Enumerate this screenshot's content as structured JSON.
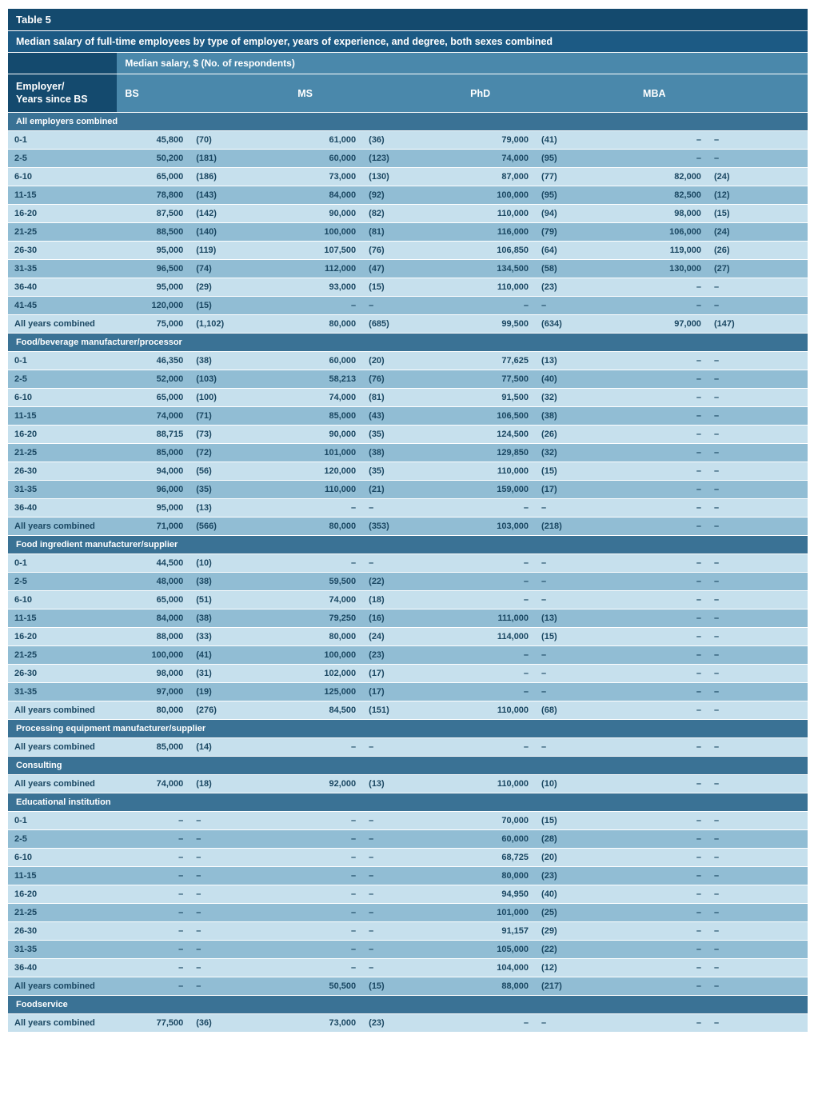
{
  "title": "Table 5",
  "subtitle": "Median salary of full-time employees by type of employer, years of experience, and degree, both sexes combined",
  "col_header_label": "Median salary, $ (No. of respondents)",
  "row_header_label": "Employer/\nYears since BS",
  "degrees": [
    "BS",
    "MS",
    "PhD",
    "MBA"
  ],
  "colors": {
    "title_bg": "#144a6e",
    "subtitle_bg": "#1c5a84",
    "header_bg": "#4a88ab",
    "section_bg": "#3a7295",
    "row_light": "#c6e0ed",
    "row_dark": "#91bdd4",
    "text": "#1a4762"
  },
  "sections": [
    {
      "name": "All employers combined",
      "rows": [
        {
          "label": "0-1",
          "vals": [
            [
              "45,800",
              "(70)"
            ],
            [
              "61,000",
              "(36)"
            ],
            [
              "79,000",
              "(41)"
            ],
            [
              "–",
              "–"
            ]
          ]
        },
        {
          "label": "2-5",
          "vals": [
            [
              "50,200",
              "(181)"
            ],
            [
              "60,000",
              "(123)"
            ],
            [
              "74,000",
              "(95)"
            ],
            [
              "–",
              "–"
            ]
          ]
        },
        {
          "label": "6-10",
          "vals": [
            [
              "65,000",
              "(186)"
            ],
            [
              "73,000",
              "(130)"
            ],
            [
              "87,000",
              "(77)"
            ],
            [
              "82,000",
              "(24)"
            ]
          ]
        },
        {
          "label": "11-15",
          "vals": [
            [
              "78,800",
              "(143)"
            ],
            [
              "84,000",
              "(92)"
            ],
            [
              "100,000",
              "(95)"
            ],
            [
              "82,500",
              "(12)"
            ]
          ]
        },
        {
          "label": "16-20",
          "vals": [
            [
              "87,500",
              "(142)"
            ],
            [
              "90,000",
              "(82)"
            ],
            [
              "110,000",
              "(94)"
            ],
            [
              "98,000",
              "(15)"
            ]
          ]
        },
        {
          "label": "21-25",
          "vals": [
            [
              "88,500",
              "(140)"
            ],
            [
              "100,000",
              "(81)"
            ],
            [
              "116,000",
              "(79)"
            ],
            [
              "106,000",
              "(24)"
            ]
          ]
        },
        {
          "label": "26-30",
          "vals": [
            [
              "95,000",
              "(119)"
            ],
            [
              "107,500",
              "(76)"
            ],
            [
              "106,850",
              "(64)"
            ],
            [
              "119,000",
              "(26)"
            ]
          ]
        },
        {
          "label": "31-35",
          "vals": [
            [
              "96,500",
              "(74)"
            ],
            [
              "112,000",
              "(47)"
            ],
            [
              "134,500",
              "(58)"
            ],
            [
              "130,000",
              "(27)"
            ]
          ]
        },
        {
          "label": "36-40",
          "vals": [
            [
              "95,000",
              "(29)"
            ],
            [
              "93,000",
              "(15)"
            ],
            [
              "110,000",
              "(23)"
            ],
            [
              "–",
              "–"
            ]
          ]
        },
        {
          "label": "41-45",
          "vals": [
            [
              "120,000",
              "(15)"
            ],
            [
              "–",
              "–"
            ],
            [
              "–",
              "–"
            ],
            [
              "–",
              "–"
            ]
          ]
        },
        {
          "label": "All years combined",
          "vals": [
            [
              "75,000",
              "(1,102)"
            ],
            [
              "80,000",
              "(685)"
            ],
            [
              "99,500",
              "(634)"
            ],
            [
              "97,000",
              "(147)"
            ]
          ]
        }
      ]
    },
    {
      "name": "Food/beverage manufacturer/processor",
      "rows": [
        {
          "label": "0-1",
          "vals": [
            [
              "46,350",
              "(38)"
            ],
            [
              "60,000",
              "(20)"
            ],
            [
              "77,625",
              "(13)"
            ],
            [
              "–",
              "–"
            ]
          ]
        },
        {
          "label": "2-5",
          "vals": [
            [
              "52,000",
              "(103)"
            ],
            [
              "58,213",
              "(76)"
            ],
            [
              "77,500",
              "(40)"
            ],
            [
              "–",
              "–"
            ]
          ]
        },
        {
          "label": "6-10",
          "vals": [
            [
              "65,000",
              "(100)"
            ],
            [
              "74,000",
              "(81)"
            ],
            [
              "91,500",
              "(32)"
            ],
            [
              "–",
              "–"
            ]
          ]
        },
        {
          "label": "11-15",
          "vals": [
            [
              "74,000",
              "(71)"
            ],
            [
              "85,000",
              "(43)"
            ],
            [
              "106,500",
              "(38)"
            ],
            [
              "–",
              "–"
            ]
          ]
        },
        {
          "label": "16-20",
          "vals": [
            [
              "88,715",
              "(73)"
            ],
            [
              "90,000",
              "(35)"
            ],
            [
              "124,500",
              "(26)"
            ],
            [
              "–",
              "–"
            ]
          ]
        },
        {
          "label": "21-25",
          "vals": [
            [
              "85,000",
              "(72)"
            ],
            [
              "101,000",
              "(38)"
            ],
            [
              "129,850",
              "(32)"
            ],
            [
              "–",
              "–"
            ]
          ]
        },
        {
          "label": "26-30",
          "vals": [
            [
              "94,000",
              "(56)"
            ],
            [
              "120,000",
              "(35)"
            ],
            [
              "110,000",
              "(15)"
            ],
            [
              "–",
              "–"
            ]
          ]
        },
        {
          "label": "31-35",
          "vals": [
            [
              "96,000",
              "(35)"
            ],
            [
              "110,000",
              "(21)"
            ],
            [
              "159,000",
              "(17)"
            ],
            [
              "–",
              "–"
            ]
          ]
        },
        {
          "label": "36-40",
          "vals": [
            [
              "95,000",
              "(13)"
            ],
            [
              "–",
              "–"
            ],
            [
              "–",
              "–"
            ],
            [
              "–",
              "–"
            ]
          ]
        },
        {
          "label": "All years combined",
          "vals": [
            [
              "71,000",
              "(566)"
            ],
            [
              "80,000",
              "(353)"
            ],
            [
              "103,000",
              "(218)"
            ],
            [
              "–",
              "–"
            ]
          ]
        }
      ]
    },
    {
      "name": "Food ingredient manufacturer/supplier",
      "rows": [
        {
          "label": "0-1",
          "vals": [
            [
              "44,500",
              "(10)"
            ],
            [
              "–",
              "–"
            ],
            [
              "–",
              "–"
            ],
            [
              "–",
              "–"
            ]
          ]
        },
        {
          "label": "2-5",
          "vals": [
            [
              "48,000",
              "(38)"
            ],
            [
              "59,500",
              "(22)"
            ],
            [
              "–",
              "–"
            ],
            [
              "–",
              "–"
            ]
          ]
        },
        {
          "label": "6-10",
          "vals": [
            [
              "65,000",
              "(51)"
            ],
            [
              "74,000",
              "(18)"
            ],
            [
              "–",
              "–"
            ],
            [
              "–",
              "–"
            ]
          ]
        },
        {
          "label": "11-15",
          "vals": [
            [
              "84,000",
              "(38)"
            ],
            [
              "79,250",
              "(16)"
            ],
            [
              "111,000",
              "(13)"
            ],
            [
              "–",
              "–"
            ]
          ]
        },
        {
          "label": "16-20",
          "vals": [
            [
              "88,000",
              "(33)"
            ],
            [
              "80,000",
              "(24)"
            ],
            [
              "114,000",
              "(15)"
            ],
            [
              "–",
              "–"
            ]
          ]
        },
        {
          "label": "21-25",
          "vals": [
            [
              "100,000",
              "(41)"
            ],
            [
              "100,000",
              "(23)"
            ],
            [
              "–",
              "–"
            ],
            [
              "–",
              "–"
            ]
          ]
        },
        {
          "label": "26-30",
          "vals": [
            [
              "98,000",
              "(31)"
            ],
            [
              "102,000",
              "(17)"
            ],
            [
              "–",
              "–"
            ],
            [
              "–",
              "–"
            ]
          ]
        },
        {
          "label": "31-35",
          "vals": [
            [
              "97,000",
              "(19)"
            ],
            [
              "125,000",
              "(17)"
            ],
            [
              "–",
              "–"
            ],
            [
              "–",
              "–"
            ]
          ]
        },
        {
          "label": "All years combined",
          "vals": [
            [
              "80,000",
              "(276)"
            ],
            [
              "84,500",
              "(151)"
            ],
            [
              "110,000",
              "(68)"
            ],
            [
              "–",
              "–"
            ]
          ]
        }
      ]
    },
    {
      "name": "Processing equipment manufacturer/supplier",
      "rows": [
        {
          "label": "All years combined",
          "vals": [
            [
              "85,000",
              "(14)"
            ],
            [
              "–",
              "–"
            ],
            [
              "–",
              "–"
            ],
            [
              "–",
              "–"
            ]
          ]
        }
      ]
    },
    {
      "name": "Consulting",
      "rows": [
        {
          "label": "All years combined",
          "vals": [
            [
              "74,000",
              "(18)"
            ],
            [
              "92,000",
              "(13)"
            ],
            [
              "110,000",
              "(10)"
            ],
            [
              "–",
              "–"
            ]
          ]
        }
      ]
    },
    {
      "name": "Educational institution",
      "rows": [
        {
          "label": "0-1",
          "vals": [
            [
              "–",
              "–"
            ],
            [
              "–",
              "–"
            ],
            [
              "70,000",
              "(15)"
            ],
            [
              "–",
              "–"
            ]
          ]
        },
        {
          "label": "2-5",
          "vals": [
            [
              "–",
              "–"
            ],
            [
              "–",
              "–"
            ],
            [
              "60,000",
              "(28)"
            ],
            [
              "–",
              "–"
            ]
          ]
        },
        {
          "label": "6-10",
          "vals": [
            [
              "–",
              "–"
            ],
            [
              "–",
              "–"
            ],
            [
              "68,725",
              "(20)"
            ],
            [
              "–",
              "–"
            ]
          ]
        },
        {
          "label": "11-15",
          "vals": [
            [
              "–",
              "–"
            ],
            [
              "–",
              "–"
            ],
            [
              "80,000",
              "(23)"
            ],
            [
              "–",
              "–"
            ]
          ]
        },
        {
          "label": "16-20",
          "vals": [
            [
              "–",
              "–"
            ],
            [
              "–",
              "–"
            ],
            [
              "94,950",
              "(40)"
            ],
            [
              "–",
              "–"
            ]
          ]
        },
        {
          "label": "21-25",
          "vals": [
            [
              "–",
              "–"
            ],
            [
              "–",
              "–"
            ],
            [
              "101,000",
              "(25)"
            ],
            [
              "–",
              "–"
            ]
          ]
        },
        {
          "label": "26-30",
          "vals": [
            [
              "–",
              "–"
            ],
            [
              "–",
              "–"
            ],
            [
              "91,157",
              "(29)"
            ],
            [
              "–",
              "–"
            ]
          ]
        },
        {
          "label": "31-35",
          "vals": [
            [
              "–",
              "–"
            ],
            [
              "–",
              "–"
            ],
            [
              "105,000",
              "(22)"
            ],
            [
              "–",
              "–"
            ]
          ]
        },
        {
          "label": "36-40",
          "vals": [
            [
              "–",
              "–"
            ],
            [
              "–",
              "–"
            ],
            [
              "104,000",
              "(12)"
            ],
            [
              "–",
              "–"
            ]
          ]
        },
        {
          "label": "All years combined",
          "vals": [
            [
              "–",
              "–"
            ],
            [
              "50,500",
              "(15)"
            ],
            [
              "88,000",
              "(217)"
            ],
            [
              "–",
              "–"
            ]
          ]
        }
      ]
    },
    {
      "name": "Foodservice",
      "rows": [
        {
          "label": "All years combined",
          "vals": [
            [
              "77,500",
              "(36)"
            ],
            [
              "73,000",
              "(23)"
            ],
            [
              "–",
              "–"
            ],
            [
              "–",
              "–"
            ]
          ]
        }
      ]
    }
  ]
}
